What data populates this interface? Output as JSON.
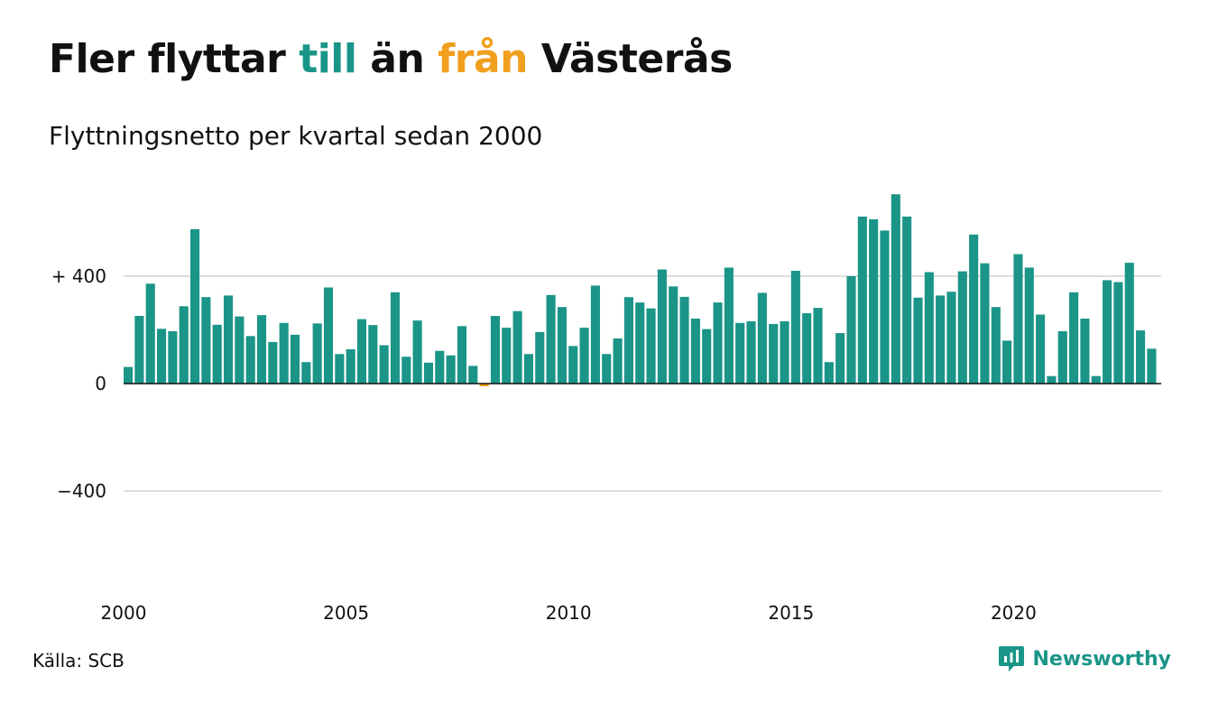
{
  "title": {
    "part1": "Fler flyttar ",
    "word_in": "till",
    "part2": " än ",
    "word_out": "från",
    "part3": " Västerås"
  },
  "subtitle": "Flyttningsnetto per kvartal sedan 2000",
  "source": "Källa: SCB",
  "brand": {
    "name": "Newsworthy",
    "icon": "newsworthy-logo-icon"
  },
  "colors": {
    "positive": "#1a9588",
    "negative": "#f0a01e",
    "grid": "#dddddd",
    "text": "#111111"
  },
  "chart_data": {
    "type": "bar",
    "title": "Fler flyttar till än från Västerås",
    "subtitle": "Flyttningsnetto per kvartal sedan 2000",
    "x_start": 2000,
    "periods_per_year": 4,
    "xticks": [
      "2000",
      "2005",
      "2010",
      "2015",
      "2020"
    ],
    "yticks": [
      {
        "value": 400,
        "label": "+ 400"
      },
      {
        "value": 0,
        "label": "0"
      },
      {
        "value": -400,
        "label": "−400"
      }
    ],
    "ylim": [
      -700,
      730
    ],
    "grid": true,
    "legend": "none",
    "values": [
      62,
      252,
      372,
      204,
      195,
      288,
      575,
      322,
      219,
      328,
      250,
      177,
      255,
      155,
      226,
      182,
      80,
      224,
      358,
      110,
      128,
      240,
      218,
      143,
      340,
      100,
      235,
      78,
      122,
      105,
      214,
      66,
      -10,
      252,
      208,
      270,
      110,
      192,
      330,
      285,
      140,
      208,
      365,
      110,
      168,
      322,
      302,
      280,
      425,
      362,
      323,
      242,
      203,
      302,
      432,
      226,
      232,
      338,
      222,
      232,
      420,
      262,
      282,
      80,
      188,
      400,
      622,
      612,
      570,
      705,
      622,
      320,
      415,
      328,
      342,
      418,
      555,
      448,
      285,
      160,
      482,
      432,
      257,
      28,
      195,
      340,
      242,
      28,
      385,
      378,
      450,
      198,
      130
    ]
  }
}
